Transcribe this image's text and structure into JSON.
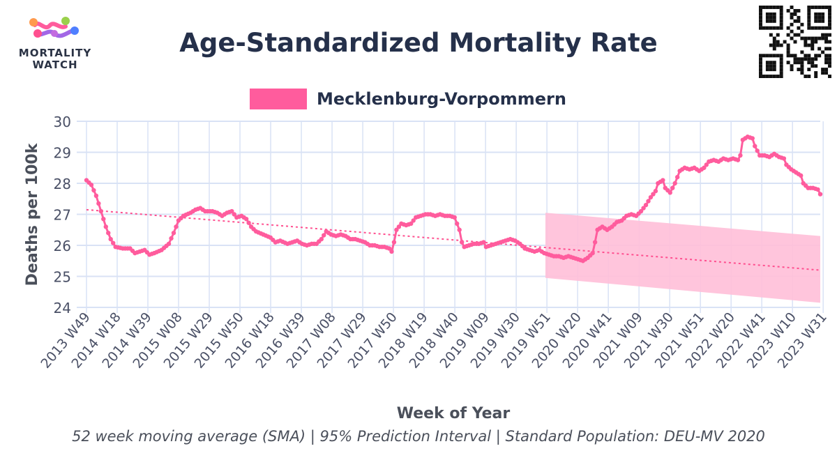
{
  "logo": {
    "line1": "MORTALITY",
    "line2": "WATCH"
  },
  "title": "Age-Standardized Mortality Rate",
  "caption": "52 week moving average (SMA) | 95% Prediction Interval | Standard Population: DEU-MV 2020",
  "colors": {
    "series": "#ff5c9d",
    "band": "#ffbfd8",
    "trend": "#ff4f8f",
    "grid": "#d9e2f5",
    "text": "#25304a",
    "tick": "#4a5066"
  },
  "chart_data": {
    "type": "line",
    "title": "Age-Standardized Mortality Rate",
    "xlabel": "Week of Year",
    "ylabel": "Deaths per 100k",
    "ylim": [
      24,
      30
    ],
    "yticks": [
      24,
      25,
      26,
      27,
      28,
      29,
      30
    ],
    "grid": true,
    "legend_position": "top-center",
    "x_ticks": [
      "2013 W49",
      "2014 W18",
      "2014 W39",
      "2015 W08",
      "2015 W29",
      "2015 W50",
      "2016 W18",
      "2016 W39",
      "2017 W08",
      "2017 W29",
      "2017 W50",
      "2018 W19",
      "2018 W40",
      "2019 W09",
      "2019 W30",
      "2019 W51",
      "2020 W20",
      "2020 W41",
      "2021 W09",
      "2021 W30",
      "2021 W51",
      "2022 W20",
      "2022 W41",
      "2023 W10",
      "2023 W31"
    ],
    "x_range_weeks": {
      "start": "2013 W49",
      "weeks_between_ticks": 21,
      "tick_count": 25,
      "last_index": 502
    },
    "series": [
      {
        "name": "Mecklenburg-Vorpommern",
        "points": [
          [
            0,
            28.1
          ],
          [
            4,
            27.95
          ],
          [
            8,
            27.6
          ],
          [
            12,
            27.1
          ],
          [
            16,
            26.6
          ],
          [
            20,
            26.2
          ],
          [
            24,
            25.95
          ],
          [
            30,
            25.9
          ],
          [
            36,
            25.9
          ],
          [
            40,
            25.75
          ],
          [
            44,
            25.8
          ],
          [
            48,
            25.85
          ],
          [
            52,
            25.7
          ],
          [
            56,
            25.75
          ],
          [
            62,
            25.85
          ],
          [
            68,
            26.05
          ],
          [
            72,
            26.4
          ],
          [
            76,
            26.8
          ],
          [
            80,
            26.95
          ],
          [
            86,
            27.05
          ],
          [
            90,
            27.15
          ],
          [
            94,
            27.2
          ],
          [
            98,
            27.1
          ],
          [
            104,
            27.1
          ],
          [
            108,
            27.05
          ],
          [
            112,
            26.95
          ],
          [
            116,
            27.05
          ],
          [
            120,
            27.1
          ],
          [
            124,
            26.9
          ],
          [
            128,
            26.95
          ],
          [
            132,
            26.85
          ],
          [
            136,
            26.6
          ],
          [
            140,
            26.45
          ],
          [
            146,
            26.35
          ],
          [
            152,
            26.25
          ],
          [
            156,
            26.1
          ],
          [
            160,
            26.15
          ],
          [
            166,
            26.05
          ],
          [
            170,
            26.1
          ],
          [
            174,
            26.15
          ],
          [
            178,
            26.05
          ],
          [
            182,
            26.0
          ],
          [
            186,
            26.05
          ],
          [
            190,
            26.05
          ],
          [
            194,
            26.2
          ],
          [
            198,
            26.45
          ],
          [
            202,
            26.35
          ],
          [
            206,
            26.3
          ],
          [
            210,
            26.35
          ],
          [
            214,
            26.3
          ],
          [
            218,
            26.2
          ],
          [
            222,
            26.2
          ],
          [
            226,
            26.15
          ],
          [
            230,
            26.1
          ],
          [
            234,
            26.0
          ],
          [
            238,
            26.0
          ],
          [
            242,
            25.95
          ],
          [
            246,
            25.95
          ],
          [
            250,
            25.9
          ],
          [
            252,
            25.8
          ],
          [
            254,
            26.1
          ],
          [
            256,
            26.5
          ],
          [
            260,
            26.7
          ],
          [
            264,
            26.65
          ],
          [
            268,
            26.7
          ],
          [
            272,
            26.9
          ],
          [
            276,
            26.95
          ],
          [
            280,
            27.0
          ],
          [
            284,
            27.0
          ],
          [
            288,
            26.95
          ],
          [
            292,
            27.0
          ],
          [
            296,
            26.95
          ],
          [
            300,
            26.95
          ],
          [
            304,
            26.9
          ],
          [
            308,
            26.5
          ],
          [
            310,
            26.1
          ],
          [
            312,
            25.95
          ],
          [
            316,
            26.0
          ],
          [
            320,
            26.05
          ],
          [
            324,
            26.05
          ],
          [
            328,
            26.1
          ],
          [
            330,
            25.95
          ],
          [
            334,
            26.0
          ],
          [
            338,
            26.05
          ],
          [
            342,
            26.1
          ],
          [
            346,
            26.15
          ],
          [
            350,
            26.2
          ],
          [
            354,
            26.15
          ],
          [
            358,
            26.05
          ],
          [
            362,
            25.9
          ],
          [
            366,
            25.85
          ],
          [
            370,
            25.8
          ],
          [
            374,
            25.85
          ],
          [
            378,
            25.75
          ],
          [
            382,
            25.7
          ],
          [
            386,
            25.65
          ],
          [
            390,
            25.65
          ],
          [
            394,
            25.6
          ],
          [
            398,
            25.65
          ],
          [
            402,
            25.6
          ],
          [
            406,
            25.55
          ],
          [
            410,
            25.5
          ],
          [
            414,
            25.6
          ],
          [
            418,
            25.75
          ],
          [
            420,
            26.1
          ],
          [
            422,
            26.5
          ],
          [
            426,
            26.6
          ],
          [
            430,
            26.5
          ],
          [
            434,
            26.6
          ],
          [
            438,
            26.75
          ],
          [
            442,
            26.8
          ],
          [
            446,
            26.95
          ],
          [
            450,
            27.0
          ],
          [
            454,
            26.95
          ],
          [
            458,
            27.1
          ],
          [
            462,
            27.3
          ],
          [
            466,
            27.55
          ],
          [
            470,
            27.75
          ],
          [
            472,
            28.0
          ],
          [
            476,
            28.1
          ],
          [
            478,
            27.85
          ],
          [
            482,
            27.7
          ],
          [
            486,
            28.0
          ],
          [
            490,
            28.4
          ],
          [
            494,
            28.5
          ],
          [
            498,
            28.45
          ],
          [
            502,
            28.5
          ],
          [
            506,
            28.4
          ],
          [
            510,
            28.5
          ],
          [
            514,
            28.7
          ],
          [
            518,
            28.75
          ],
          [
            522,
            28.7
          ],
          [
            526,
            28.8
          ],
          [
            530,
            28.75
          ],
          [
            534,
            28.8
          ],
          [
            538,
            28.75
          ],
          [
            540,
            28.9
          ],
          [
            542,
            29.4
          ],
          [
            546,
            29.5
          ],
          [
            550,
            29.45
          ],
          [
            552,
            29.2
          ],
          [
            556,
            28.9
          ],
          [
            560,
            28.9
          ],
          [
            564,
            28.85
          ],
          [
            568,
            28.95
          ],
          [
            572,
            28.85
          ],
          [
            576,
            28.8
          ],
          [
            578,
            28.6
          ],
          [
            582,
            28.45
          ],
          [
            586,
            28.35
          ],
          [
            590,
            28.25
          ],
          [
            592,
            28.0
          ],
          [
            596,
            27.85
          ],
          [
            600,
            27.85
          ],
          [
            604,
            27.8
          ],
          [
            606,
            27.65
          ]
        ]
      }
    ],
    "trend": {
      "name": "trend",
      "start": [
        0,
        27.15
      ],
      "end": [
        606,
        25.2
      ]
    },
    "prediction_interval": {
      "start_index": 379,
      "end_index": 606,
      "upper": [
        [
          379,
          27.05
        ],
        [
          606,
          26.3
        ]
      ],
      "lower": [
        [
          379,
          24.95
        ],
        [
          606,
          24.15
        ]
      ]
    }
  }
}
